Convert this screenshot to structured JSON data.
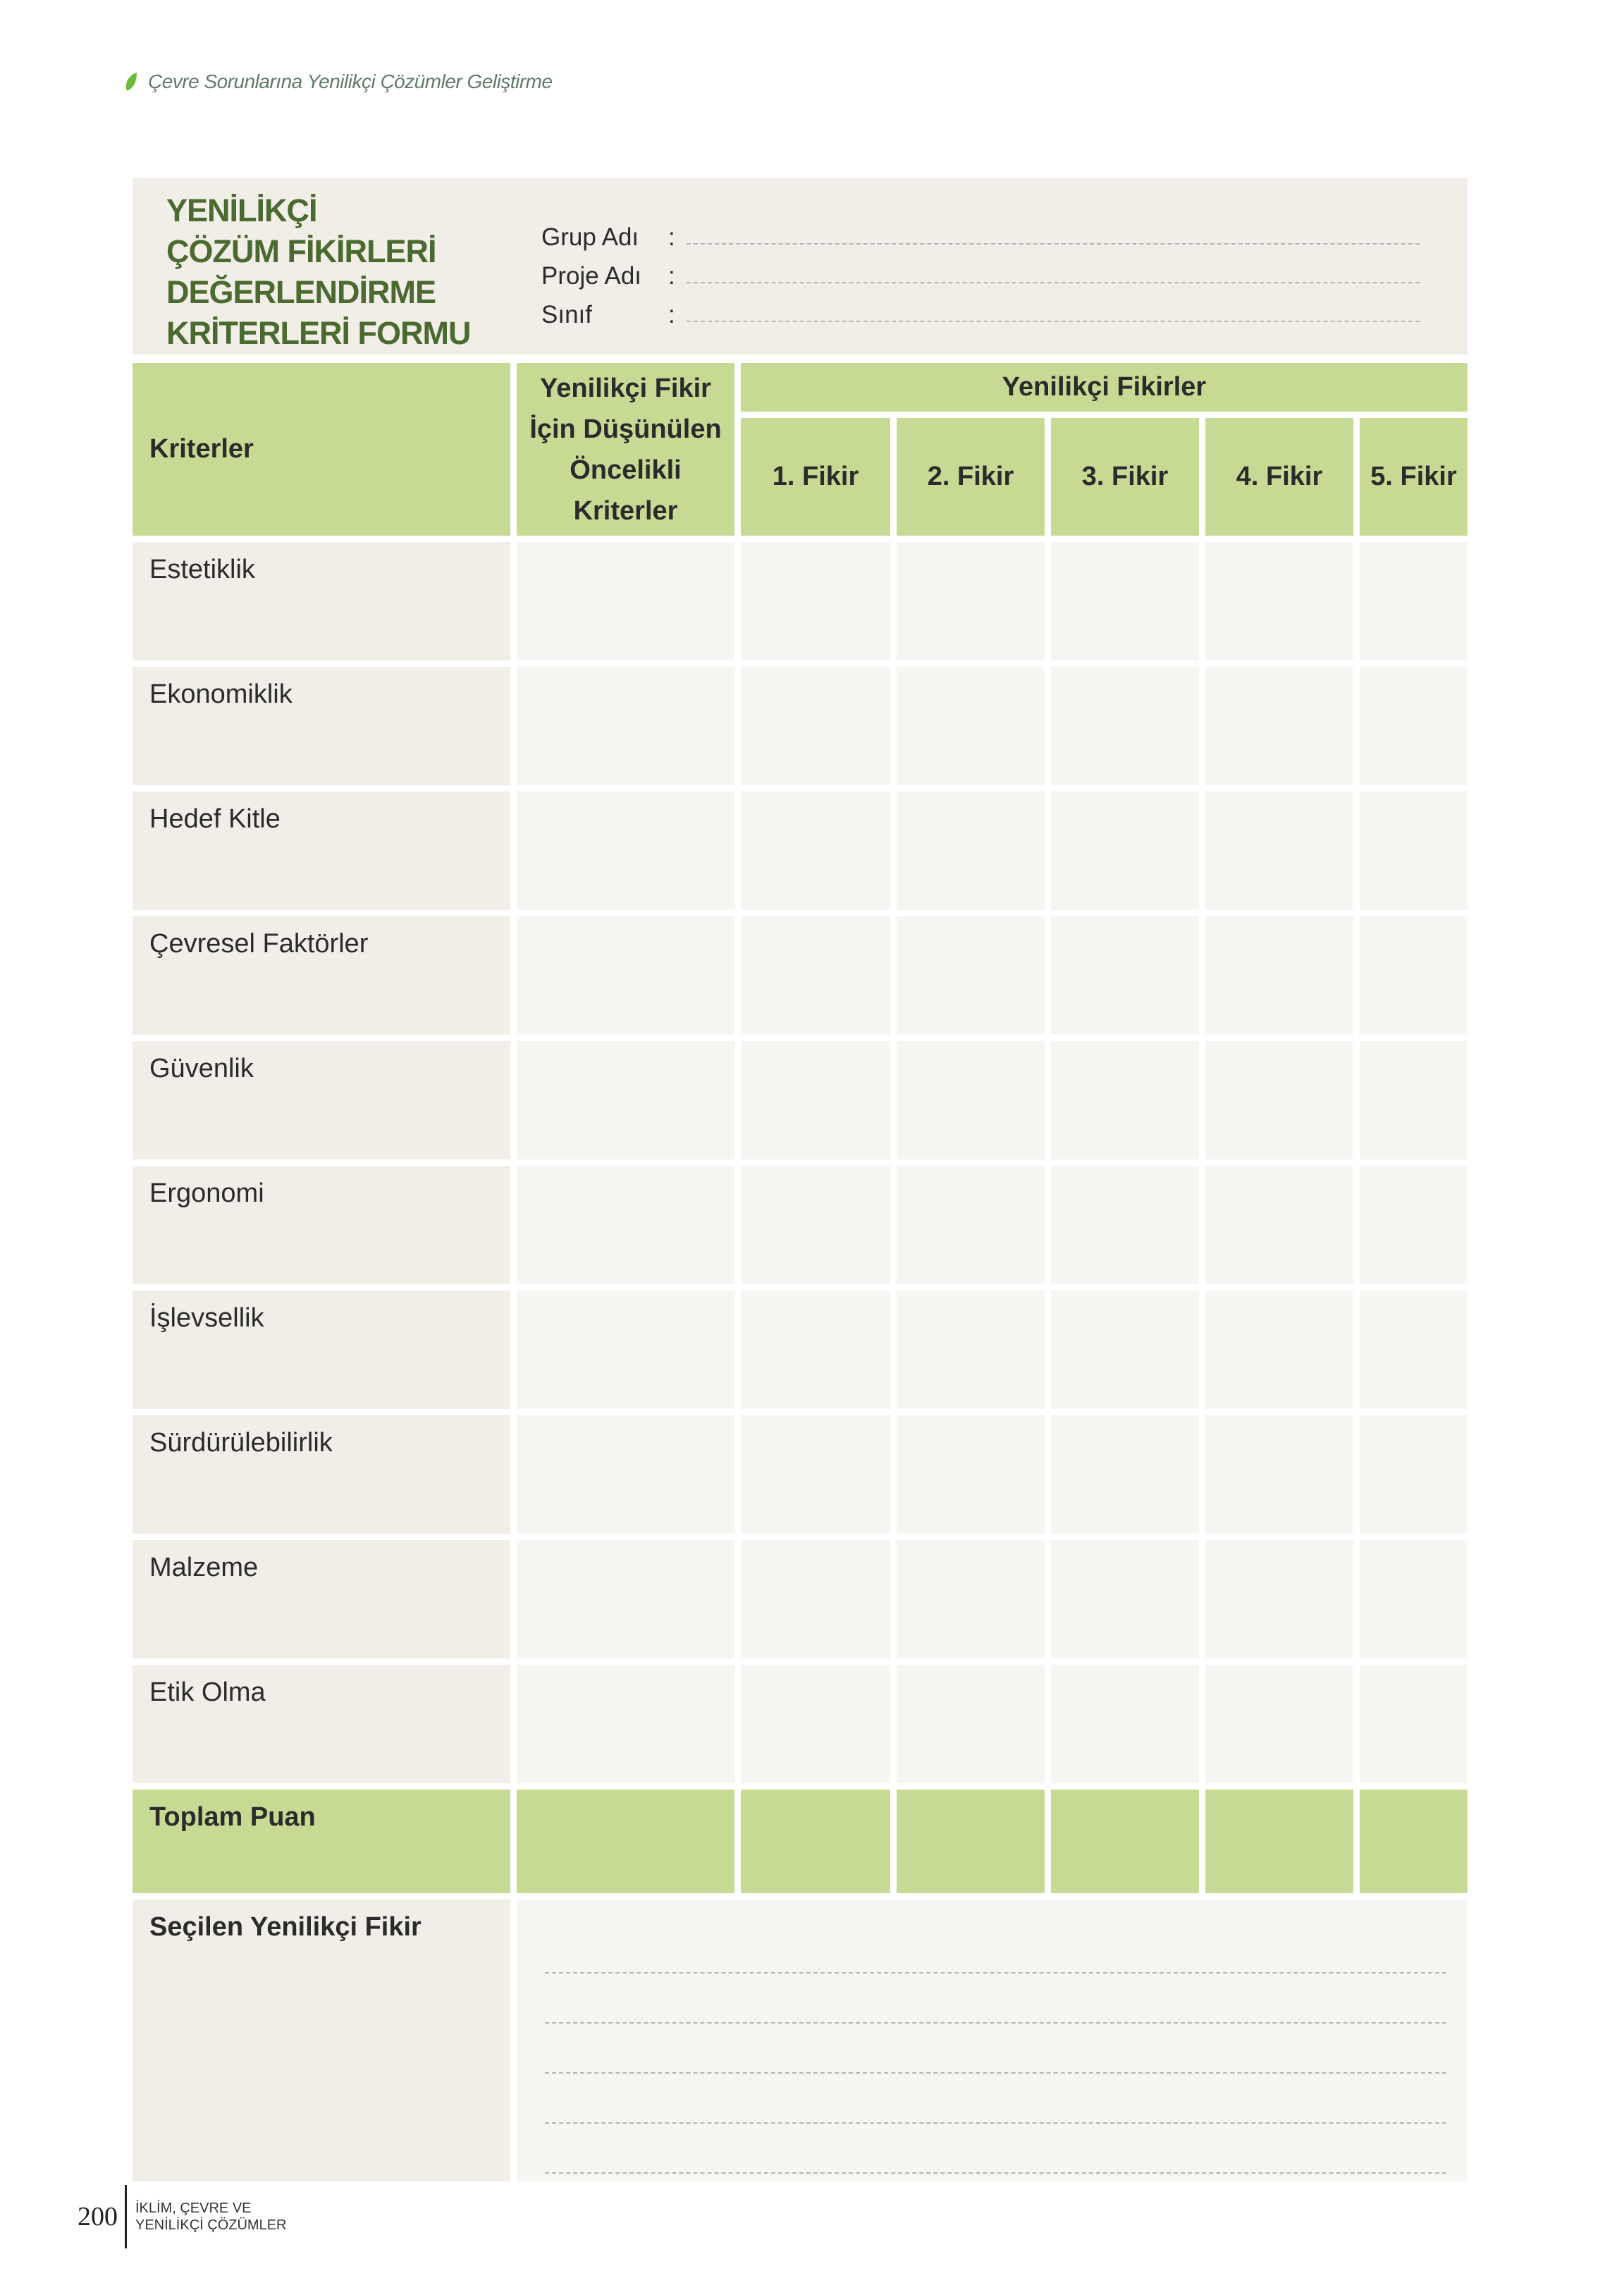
{
  "running_header": {
    "text": "Çevre Sorunlarına Yenilikçi Çözümler Geliştirme",
    "icon": "leaf-icon"
  },
  "form": {
    "title_lines": [
      "YENİLİKÇİ",
      "ÇÖZÜM FİKİRLERİ",
      "DEĞERLENDİRME",
      "KRİTERLERİ FORMU"
    ],
    "fields": [
      {
        "label": "Grup Adı",
        "value": ""
      },
      {
        "label": "Proje Adı",
        "value": ""
      },
      {
        "label": "Sınıf",
        "value": ""
      }
    ],
    "colon": ":"
  },
  "table": {
    "criteria_header": "Kriterler",
    "priority_header": "Yenilikçi Fikir İçin Düşünülen Öncelikli Kriterler",
    "ideas_header": "Yenilikçi Fikirler",
    "idea_columns": [
      "1. Fikir",
      "2. Fikir",
      "3. Fikir",
      "4. Fikir",
      "5. Fikir"
    ],
    "rows": [
      "Estetiklik",
      "Ekonomiklik",
      "Hedef Kitle",
      "Çevresel Faktörler",
      "Güvenlik",
      "Ergonomi",
      "İşlevsellik",
      "Sürdürülebilirlik",
      "Malzeme",
      "Etik Olma"
    ],
    "total_label": "Toplam Puan",
    "selected_label": "Seçilen Yenilikçi Fikir"
  },
  "colors": {
    "header_green": "#c6da94",
    "title_green": "#4a6a2f",
    "label_cell": "#f1eee7",
    "empty_cell": "#f6f5f1"
  },
  "footer": {
    "page_number": "200",
    "book_title_line1": "İKLİM, ÇEVRE VE",
    "book_title_line2": "YENİLİKÇİ ÇÖZÜMLER"
  }
}
